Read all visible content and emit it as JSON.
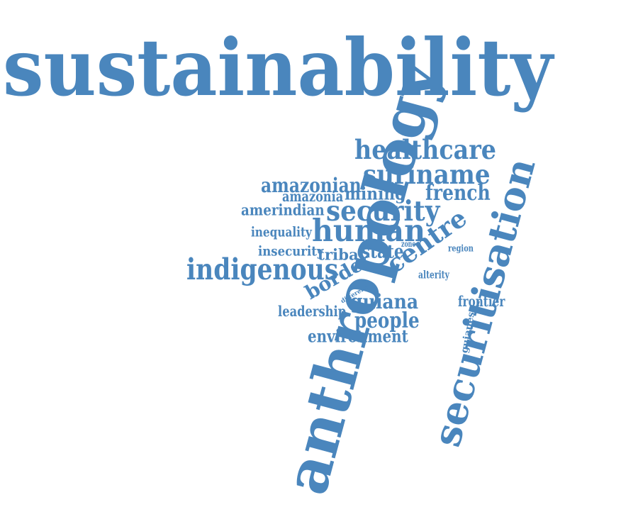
{
  "colors": {
    "word": "#4a86bd",
    "background": "#ffffff"
  },
  "words": [
    "sustainability",
    "anthropology",
    "securitisation",
    "healthcare",
    "suriname",
    "amazonian",
    "amazonia",
    "mining",
    "french",
    "amerindian",
    "security",
    "inequality",
    "human",
    "centre",
    "insecurity",
    "tribal",
    "state",
    "zone",
    "region",
    "indigenous",
    "border",
    "alterity",
    "different",
    "guiana",
    "leadership",
    "frontier",
    "people",
    "guianese",
    "environment"
  ]
}
